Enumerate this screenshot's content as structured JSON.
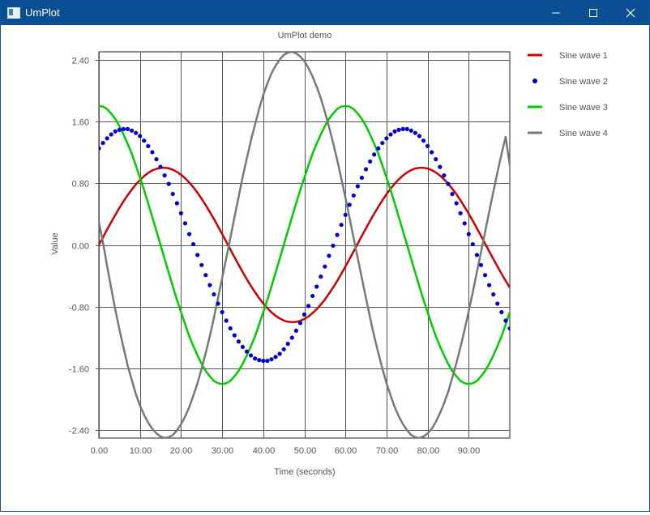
{
  "window": {
    "title": "UmPlot",
    "minimize_icon": "minimize-icon",
    "maximize_icon": "maximize-icon",
    "close_icon": "close-icon"
  },
  "chart_data": {
    "type": "line",
    "title": "UmPlot demo",
    "xlabel": "Time (seconds)",
    "ylabel": "Value",
    "xlim": [
      0,
      100
    ],
    "ylim": [
      -2.5,
      2.5
    ],
    "grid": true,
    "legend_position": "right",
    "x_ticks": [
      0,
      10,
      20,
      30,
      40,
      50,
      60,
      70,
      80,
      90
    ],
    "x_tick_labels": [
      "0.00",
      "10.00",
      "20.00",
      "30.00",
      "40.00",
      "50.00",
      "60.00",
      "70.00",
      "80.00",
      "90.00"
    ],
    "y_ticks": [
      2.4,
      1.6,
      0.8,
      0.0,
      -0.8,
      -1.6,
      -2.4
    ],
    "y_tick_labels": [
      "2.40",
      "1.60",
      "0.80",
      "0.00",
      "-0.80",
      "-1.60",
      "-2.40"
    ],
    "x": [
      0,
      1,
      2,
      3,
      4,
      5,
      6,
      7,
      8,
      9,
      10,
      11,
      12,
      13,
      14,
      15,
      16,
      17,
      18,
      19,
      20,
      21,
      22,
      23,
      24,
      25,
      26,
      27,
      28,
      29,
      30,
      31,
      32,
      33,
      34,
      35,
      36,
      37,
      38,
      39,
      40,
      41,
      42,
      43,
      44,
      45,
      46,
      47,
      48,
      49,
      50,
      51,
      52,
      53,
      54,
      55,
      56,
      57,
      58,
      59,
      60,
      61,
      62,
      63,
      64,
      65,
      66,
      67,
      68,
      69,
      70,
      71,
      72,
      73,
      74,
      75,
      76,
      77,
      78,
      79,
      80,
      81,
      82,
      83,
      84,
      85,
      86,
      87,
      88,
      89,
      90,
      91,
      92,
      93,
      94,
      95,
      96,
      97,
      98,
      99,
      100
    ],
    "series": [
      {
        "name": "Sine wave 1",
        "style": "line",
        "color": "#cc0000",
        "values": [
          0.0,
          0.099,
          0.198,
          0.295,
          0.389,
          0.479,
          0.565,
          0.644,
          0.717,
          0.783,
          0.841,
          0.891,
          0.932,
          0.964,
          0.985,
          0.997,
          1.0,
          0.992,
          0.974,
          0.946,
          0.909,
          0.863,
          0.808,
          0.746,
          0.675,
          0.598,
          0.516,
          0.427,
          0.335,
          0.239,
          0.141,
          0.042,
          -0.058,
          -0.158,
          -0.256,
          -0.351,
          -0.443,
          -0.53,
          -0.612,
          -0.688,
          -0.757,
          -0.818,
          -0.872,
          -0.916,
          -0.952,
          -0.978,
          -0.994,
          -1.0,
          -0.996,
          -0.982,
          -0.959,
          -0.926,
          -0.883,
          -0.832,
          -0.773,
          -0.706,
          -0.631,
          -0.551,
          -0.465,
          -0.374,
          -0.279,
          -0.182,
          -0.083,
          0.017,
          0.117,
          0.215,
          0.312,
          0.405,
          0.494,
          0.578,
          0.657,
          0.729,
          0.794,
          0.85,
          0.899,
          0.938,
          0.969,
          0.989,
          0.999,
          0.999,
          0.989,
          0.969,
          0.938,
          0.899,
          0.85,
          0.794,
          0.729,
          0.657,
          0.578,
          0.494,
          0.405,
          0.312,
          0.215,
          0.117,
          0.017,
          -0.083,
          -0.182,
          -0.279,
          -0.374,
          -0.465,
          -0.551
        ]
      },
      {
        "name": "Sine wave 2",
        "style": "dots",
        "color": "#0000cc",
        "values": [
          1.25,
          1.32,
          1.38,
          1.43,
          1.47,
          1.49,
          1.5,
          1.5,
          1.48,
          1.45,
          1.41,
          1.35,
          1.28,
          1.2,
          1.11,
          1.01,
          0.9,
          0.79,
          0.66,
          0.54,
          0.41,
          0.28,
          0.14,
          0.01,
          -0.13,
          -0.26,
          -0.39,
          -0.52,
          -0.64,
          -0.76,
          -0.87,
          -0.98,
          -1.08,
          -1.17,
          -1.25,
          -1.32,
          -1.38,
          -1.43,
          -1.47,
          -1.49,
          -1.5,
          -1.5,
          -1.48,
          -1.45,
          -1.41,
          -1.35,
          -1.28,
          -1.2,
          -1.11,
          -1.01,
          -0.9,
          -0.79,
          -0.66,
          -0.54,
          -0.41,
          -0.28,
          -0.14,
          -0.01,
          0.13,
          0.26,
          0.39,
          0.52,
          0.64,
          0.76,
          0.87,
          0.98,
          1.08,
          1.17,
          1.25,
          1.32,
          1.38,
          1.43,
          1.47,
          1.49,
          1.5,
          1.5,
          1.48,
          1.45,
          1.41,
          1.35,
          1.28,
          1.2,
          1.11,
          1.01,
          0.9,
          0.79,
          0.66,
          0.54,
          0.41,
          0.28,
          0.14,
          0.01,
          -0.13,
          -0.26,
          -0.39,
          -0.52,
          -0.64,
          -0.76,
          -0.87,
          -0.98,
          -1.08
        ]
      },
      {
        "name": "Sine wave 3",
        "style": "line",
        "color": "#00cc00",
        "values": [
          1.8,
          1.79,
          1.76,
          1.7,
          1.63,
          1.54,
          1.43,
          1.31,
          1.18,
          1.03,
          0.87,
          0.71,
          0.54,
          0.36,
          0.18,
          0.0,
          -0.18,
          -0.36,
          -0.54,
          -0.71,
          -0.87,
          -1.03,
          -1.18,
          -1.31,
          -1.43,
          -1.54,
          -1.63,
          -1.7,
          -1.76,
          -1.79,
          -1.8,
          -1.79,
          -1.76,
          -1.7,
          -1.63,
          -1.54,
          -1.43,
          -1.31,
          -1.18,
          -1.03,
          -0.87,
          -0.71,
          -0.54,
          -0.36,
          -0.18,
          0.0,
          0.18,
          0.36,
          0.54,
          0.71,
          0.87,
          1.03,
          1.18,
          1.31,
          1.43,
          1.54,
          1.63,
          1.7,
          1.76,
          1.79,
          1.8,
          1.79,
          1.76,
          1.7,
          1.63,
          1.54,
          1.43,
          1.31,
          1.18,
          1.03,
          0.87,
          0.71,
          0.54,
          0.36,
          0.18,
          0.0,
          -0.18,
          -0.36,
          -0.54,
          -0.71,
          -0.87,
          -1.03,
          -1.18,
          -1.31,
          -1.43,
          -1.54,
          -1.63,
          -1.7,
          -1.76,
          -1.79,
          -1.8,
          -1.79,
          -1.76,
          -1.7,
          -1.63,
          -1.54,
          -1.43,
          -1.31,
          -1.18,
          -1.03,
          -0.87
        ]
      },
      {
        "name": "Sine wave 4",
        "style": "line",
        "color": "#6f7f6f",
        "values": [
          0.3,
          0.03,
          -0.27,
          -0.56,
          -0.84,
          -1.09,
          -1.33,
          -1.56,
          -1.75,
          -1.93,
          -2.08,
          -2.2,
          -2.3,
          -2.38,
          -2.44,
          -2.48,
          -2.5,
          -2.49,
          -2.46,
          -2.4,
          -2.32,
          -2.22,
          -2.1,
          -1.95,
          -1.79,
          -1.6,
          -1.4,
          -1.18,
          -0.94,
          -0.69,
          -0.43,
          -0.17,
          0.09,
          0.36,
          0.62,
          0.88,
          1.12,
          1.35,
          1.56,
          1.76,
          1.94,
          2.09,
          2.22,
          2.32,
          2.4,
          2.46,
          2.49,
          2.5,
          2.48,
          2.44,
          2.38,
          2.29,
          2.18,
          2.05,
          1.9,
          1.72,
          1.53,
          1.32,
          1.1,
          0.86,
          0.61,
          0.35,
          0.09,
          -0.17,
          -0.43,
          -0.69,
          -0.94,
          -1.18,
          -1.4,
          -1.6,
          -1.79,
          -1.95,
          -2.1,
          -2.22,
          -2.32,
          -2.4,
          -2.46,
          -2.49,
          -2.5,
          -2.48,
          -2.44,
          -2.38,
          -2.29,
          -2.18,
          -2.05,
          -1.9,
          -1.72,
          -1.53,
          -1.32,
          -1.1,
          -0.86,
          -0.61,
          -0.35,
          -0.09,
          0.17,
          0.43,
          0.69,
          0.94,
          1.18,
          1.4,
          1.03
        ]
      }
    ]
  }
}
